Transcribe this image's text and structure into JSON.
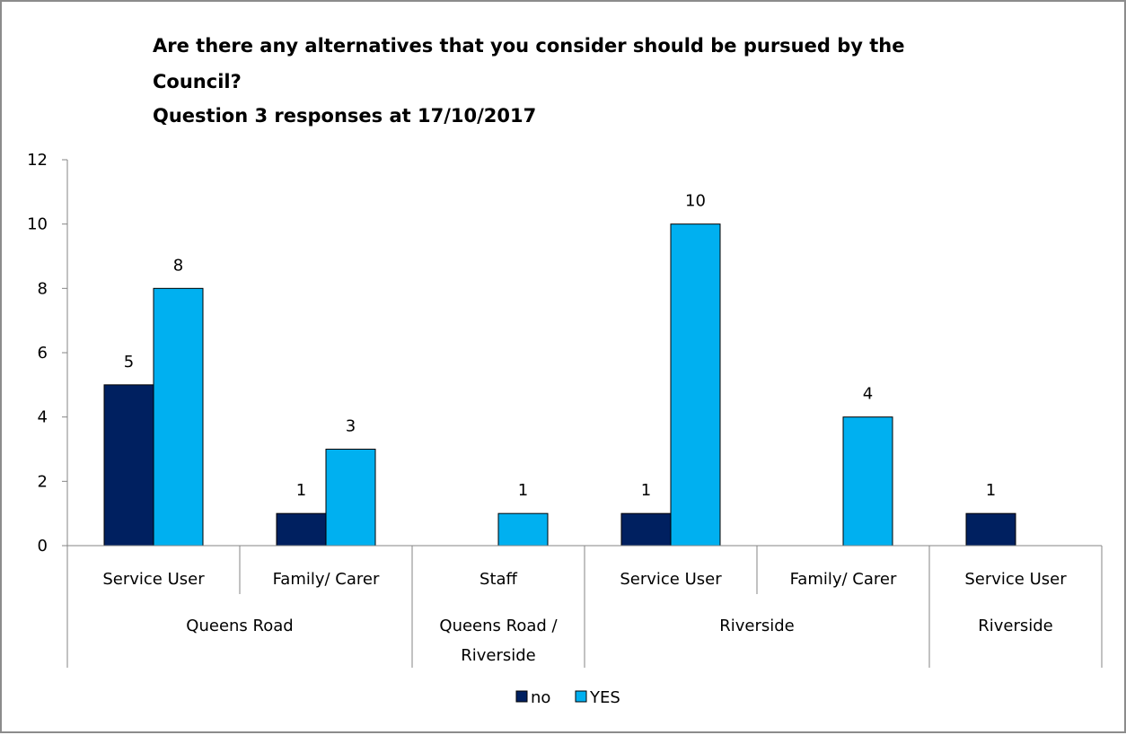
{
  "chart_data": {
    "type": "bar",
    "title_lines": [
      "Are there any alternatives that you consider should be pursued by the",
      "Council?",
      "Question 3 responses at 17/10/2017"
    ],
    "categories": [
      {
        "label": "Service User",
        "group": "Queens Road"
      },
      {
        "label": "Family/ Carer",
        "group": "Queens Road"
      },
      {
        "label": "Staff",
        "group": "Queens Road / Riverside"
      },
      {
        "label": "Service User",
        "group": "Riverside"
      },
      {
        "label": "Family/ Carer",
        "group": "Riverside"
      },
      {
        "label": "Service User",
        "group": "Riverside"
      }
    ],
    "groups": [
      {
        "label_lines": [
          "Queens Road"
        ],
        "span": 2
      },
      {
        "label_lines": [
          "Queens Road /",
          "Riverside"
        ],
        "span": 1
      },
      {
        "label_lines": [
          "Riverside"
        ],
        "span": 2
      },
      {
        "label_lines": [
          "Riverside"
        ],
        "span": 1
      }
    ],
    "series": [
      {
        "name": "no",
        "color": "#002060",
        "values": [
          5,
          1,
          null,
          1,
          null,
          1
        ]
      },
      {
        "name": "YES",
        "color": "#00B0F0",
        "values": [
          8,
          3,
          1,
          10,
          4,
          null
        ]
      }
    ],
    "y_ticks": [
      "0",
      "2",
      "4",
      "6",
      "8",
      "10",
      "12"
    ],
    "ylim": [
      0,
      12
    ],
    "ystep": 2,
    "xlabel": "",
    "ylabel": "",
    "grid": false,
    "legend_position": "bottom"
  }
}
